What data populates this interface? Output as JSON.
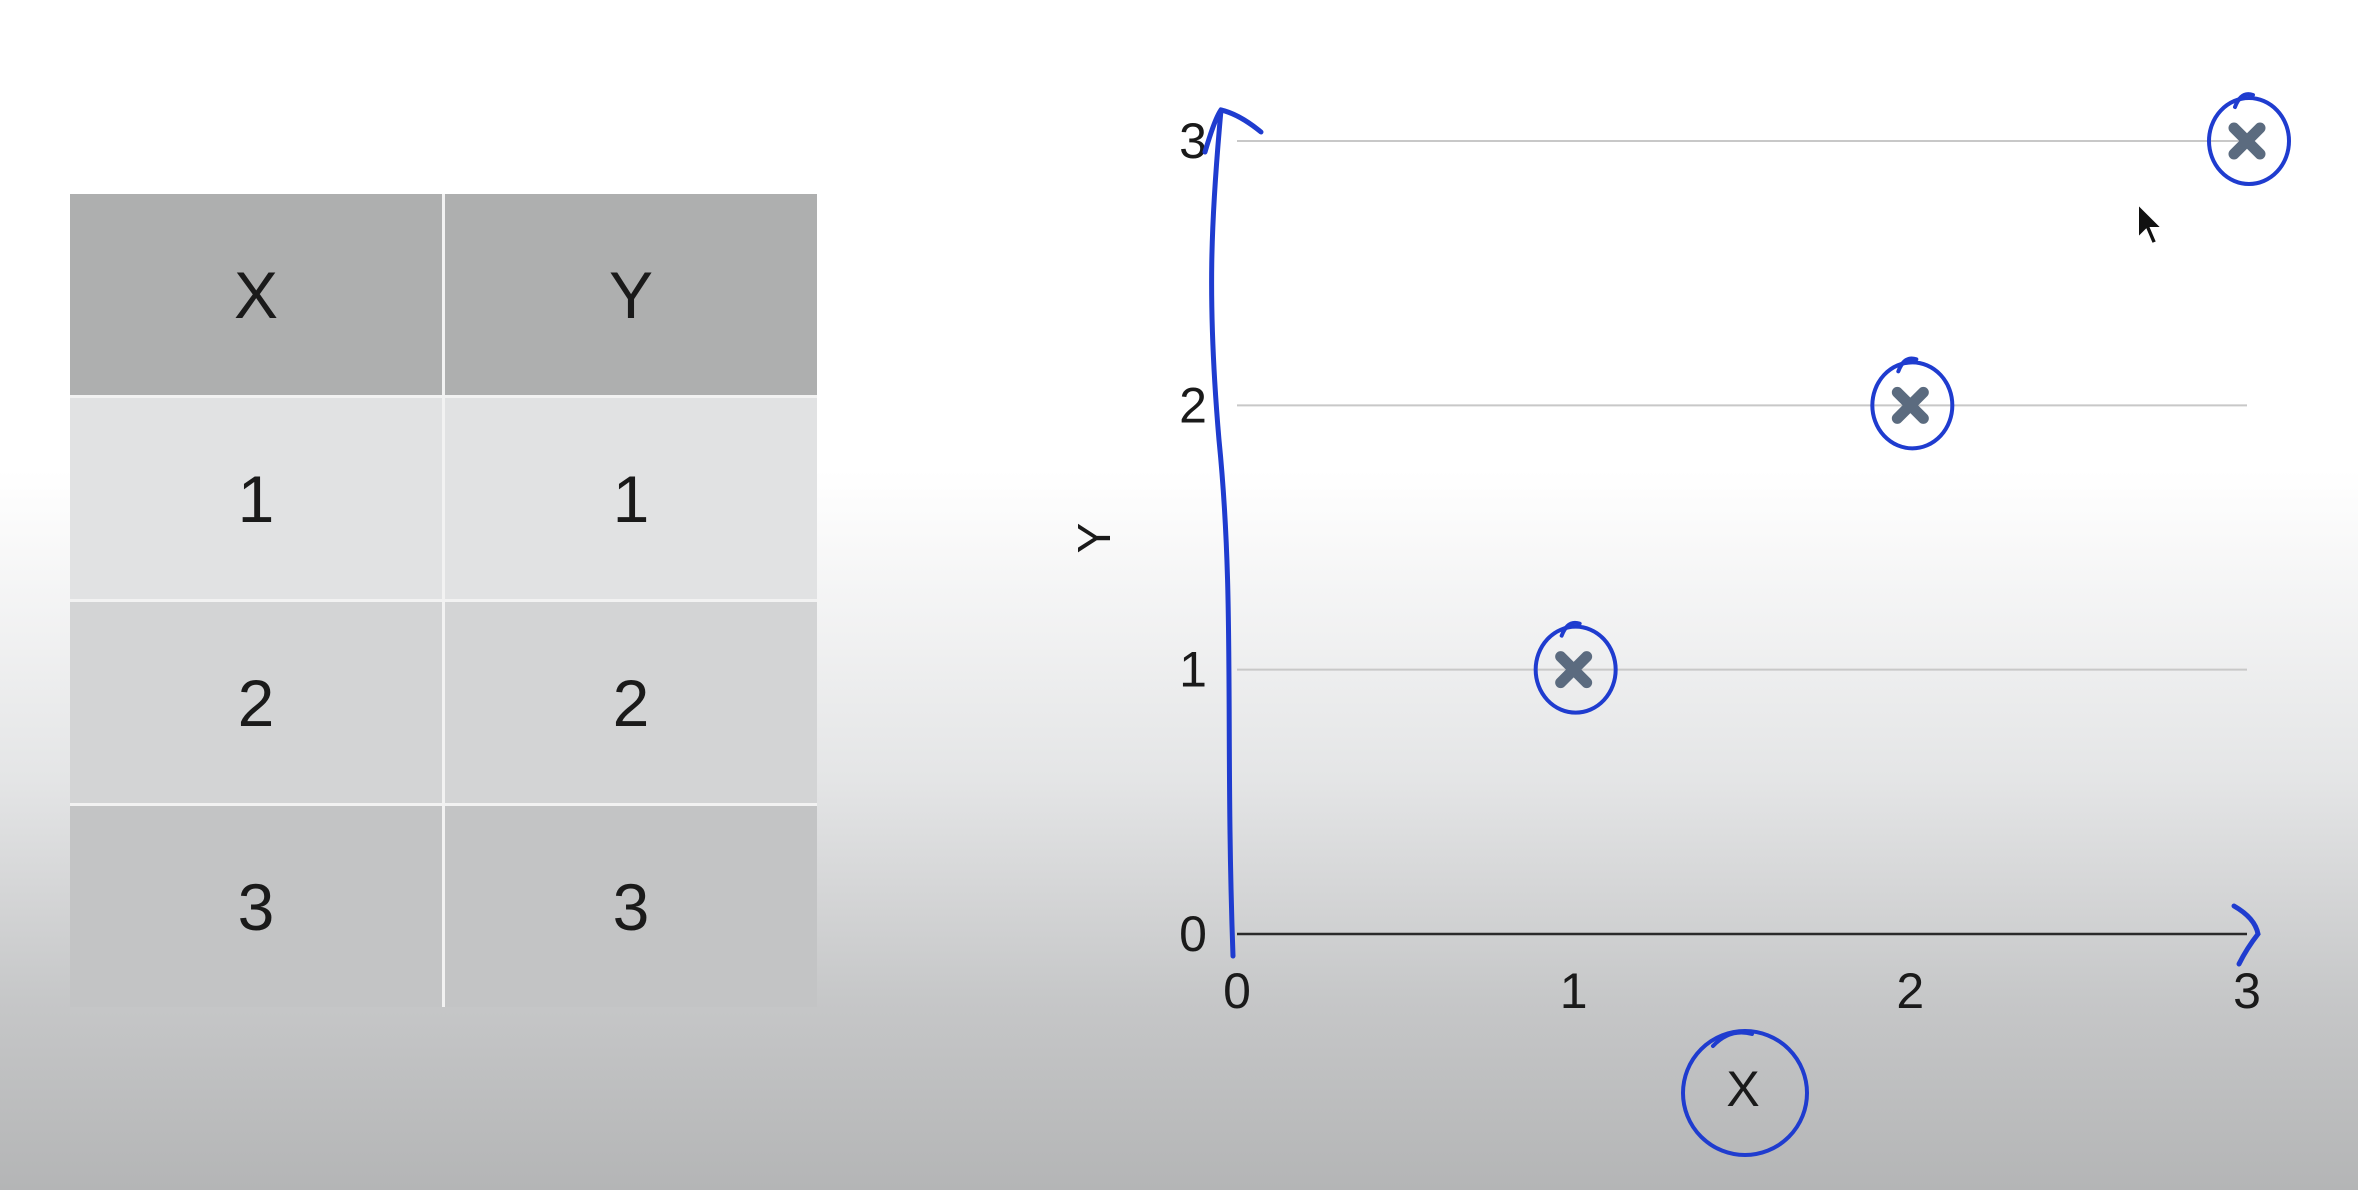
{
  "table": {
    "headers": [
      "X",
      "Y"
    ],
    "rows": [
      [
        "1",
        "1"
      ],
      [
        "2",
        "2"
      ],
      [
        "3",
        "3"
      ]
    ]
  },
  "chart_data": {
    "type": "scatter",
    "xlabel": "X",
    "ylabel": "Y",
    "xlim": [
      0,
      3
    ],
    "ylim": [
      0,
      3
    ],
    "x_ticks": [
      "0",
      "1",
      "2",
      "3"
    ],
    "y_ticks": [
      "0",
      "1",
      "2",
      "3"
    ],
    "grid": "horizontal",
    "series": [
      {
        "x": [
          1,
          2,
          3
        ],
        "y": [
          1,
          2,
          3
        ]
      }
    ],
    "marker": "x",
    "colors": {
      "marker": "#5b6b7f",
      "annotation": "#1f3ccf",
      "grid": "#c8c8c8",
      "axis": "#2a2a2a"
    }
  }
}
